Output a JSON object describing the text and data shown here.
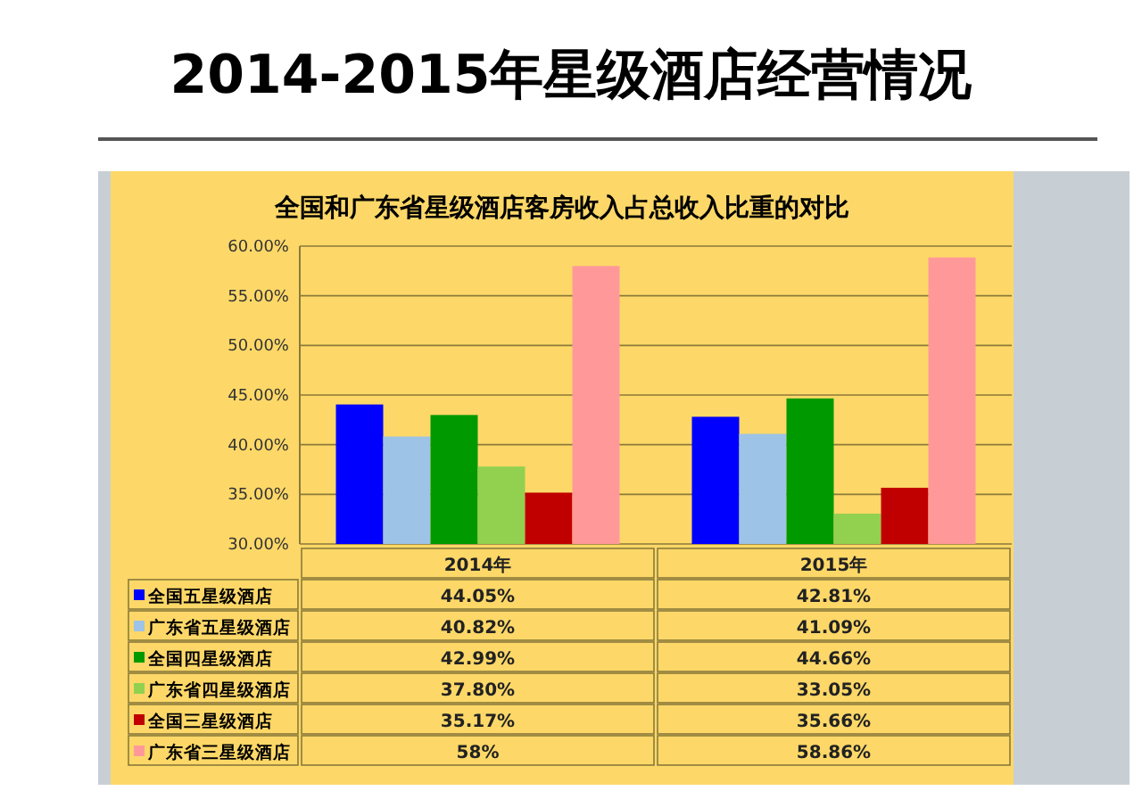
{
  "chart_data": {
    "type": "bar",
    "title": "2014-2015年星级酒店经营情况",
    "subtitle": "全国和广东省星级酒店客房收入占总收入比重的对比",
    "categories": [
      "2014年",
      "2015年"
    ],
    "series": [
      {
        "name": "全国五星级酒店",
        "color": "#0000ff",
        "values": [
          44.05,
          42.81
        ],
        "value_labels": [
          "44.05%",
          "42.81%"
        ]
      },
      {
        "name": "广东省五星级酒店",
        "color": "#9dc3e6",
        "values": [
          40.82,
          41.09
        ],
        "value_labels": [
          "40.82%",
          "41.09%"
        ]
      },
      {
        "name": "全国四星级酒店",
        "color": "#009900",
        "values": [
          42.99,
          44.66
        ],
        "value_labels": [
          "42.99%",
          "44.66%"
        ]
      },
      {
        "name": "广东省四星级酒店",
        "color": "#92d050",
        "values": [
          37.8,
          33.05
        ],
        "value_labels": [
          "37.80%",
          "33.05%"
        ]
      },
      {
        "name": "全国三星级酒店",
        "color": "#c00000",
        "values": [
          35.17,
          35.66
        ],
        "value_labels": [
          "35.17%",
          "35.66%"
        ]
      },
      {
        "name": "广东省三星级酒店",
        "color": "#ff9999",
        "values": [
          58,
          58.86
        ],
        "value_labels": [
          "58%",
          "58.86%"
        ]
      }
    ],
    "ylim": [
      30,
      60
    ],
    "yticks": [
      {
        "value": 30,
        "label": "30.00%"
      },
      {
        "value": 35,
        "label": "35.00%"
      },
      {
        "value": 40,
        "label": "40.00%"
      },
      {
        "value": 45,
        "label": "45.00%"
      },
      {
        "value": 50,
        "label": "50.00%"
      },
      {
        "value": 55,
        "label": "55.00%"
      },
      {
        "value": 60,
        "label": "60.00%"
      }
    ],
    "grid": "y",
    "legend": "bottom"
  }
}
